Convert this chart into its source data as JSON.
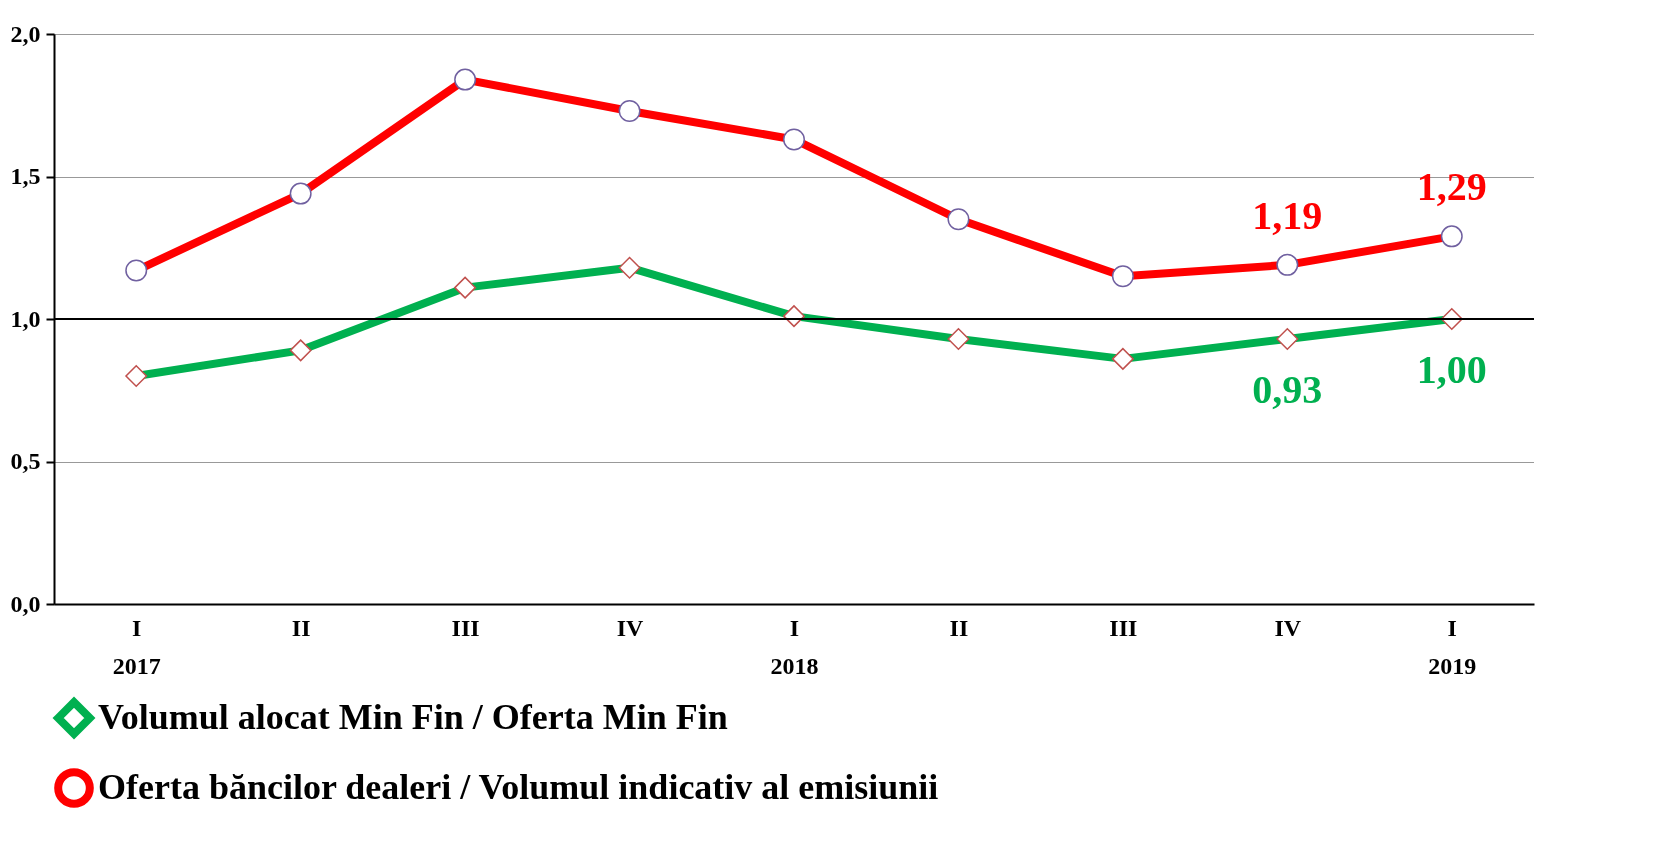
{
  "chart_data": {
    "type": "line",
    "categories": [
      "I\n2017",
      "II",
      "III",
      "IV",
      "I\n2018",
      "II",
      "III",
      "IV",
      "I\n2019"
    ],
    "series": [
      {
        "name": "Volumul alocat Min Fin / Oferta Min Fin",
        "color": "#00b050",
        "marker": "diamond",
        "values": [
          0.8,
          0.89,
          1.11,
          1.18,
          1.01,
          0.93,
          0.86,
          0.93,
          1.0
        ],
        "value_labels": [
          null,
          null,
          null,
          null,
          null,
          null,
          null,
          "0,93",
          "1,00"
        ]
      },
      {
        "name": "Oferta băncilor dealeri / Volumul indicativ al emisiunii",
        "color": "#ff0000",
        "marker": "circle",
        "values": [
          1.17,
          1.44,
          1.84,
          1.73,
          1.63,
          1.35,
          1.15,
          1.19,
          1.29
        ],
        "value_labels": [
          null,
          null,
          null,
          null,
          null,
          null,
          null,
          "1,19",
          "1,29"
        ]
      }
    ],
    "ylim": [
      0,
      2
    ],
    "yticks": [
      {
        "value": 0,
        "label": "0,0"
      },
      {
        "value": 0.5,
        "label": "0,5"
      },
      {
        "value": 1,
        "label": "1,0"
      },
      {
        "value": 1.5,
        "label": "1,5"
      },
      {
        "value": 2,
        "label": "2,0"
      }
    ],
    "ref_lines": [
      {
        "axis": "y",
        "value": 1,
        "color": "#000000"
      }
    ],
    "grid": "y",
    "legend": "bottom",
    "line_style": "solid"
  }
}
